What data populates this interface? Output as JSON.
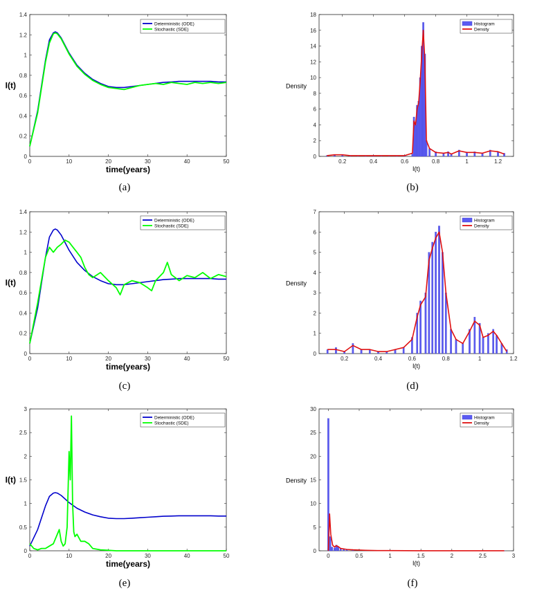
{
  "chart_data": [
    {
      "panel": "a",
      "type": "line",
      "caption": "(a)",
      "xlabel": "time(years)",
      "ylabel": "I(t)",
      "xlim": [
        0,
        50
      ],
      "ylim": [
        0,
        1.4
      ],
      "xticks": [
        "0",
        "10",
        "20",
        "30",
        "40",
        "50"
      ],
      "yticks": [
        "0",
        "0.2",
        "0.4",
        "0.6",
        "0.8",
        "1",
        "1.2",
        "1.4"
      ],
      "legend": "top-right",
      "series": [
        {
          "name": "Deterministic (ODE)",
          "color": "#0000cc",
          "x": [
            0,
            2,
            4,
            5,
            6,
            6.5,
            7,
            8,
            10,
            12,
            14,
            16,
            18,
            20,
            22,
            24,
            26,
            28,
            30,
            32,
            34,
            36,
            38,
            40,
            42,
            44,
            46,
            48,
            50
          ],
          "y": [
            0.1,
            0.45,
            0.95,
            1.15,
            1.22,
            1.23,
            1.22,
            1.17,
            1.02,
            0.9,
            0.82,
            0.76,
            0.72,
            0.69,
            0.68,
            0.68,
            0.69,
            0.7,
            0.71,
            0.72,
            0.73,
            0.735,
            0.74,
            0.74,
            0.74,
            0.74,
            0.74,
            0.735,
            0.735
          ]
        },
        {
          "name": "Stochastic (SDE)",
          "color": "#00ff00",
          "x": [
            0,
            2,
            4,
            5,
            6,
            6.5,
            7,
            8,
            10,
            12,
            14,
            16,
            18,
            20,
            22,
            24,
            26,
            28,
            30,
            32,
            34,
            36,
            38,
            40,
            42,
            44,
            46,
            48,
            50
          ],
          "y": [
            0.1,
            0.43,
            0.93,
            1.12,
            1.21,
            1.22,
            1.21,
            1.16,
            1.01,
            0.89,
            0.81,
            0.75,
            0.71,
            0.68,
            0.67,
            0.66,
            0.68,
            0.7,
            0.71,
            0.72,
            0.71,
            0.73,
            0.72,
            0.71,
            0.73,
            0.72,
            0.73,
            0.72,
            0.73
          ]
        }
      ]
    },
    {
      "panel": "b",
      "type": "bar",
      "caption": "(b)",
      "xlabel": "I(t)",
      "ylabel": "Density",
      "xlim": [
        0.05,
        1.3
      ],
      "ylim": [
        0,
        18
      ],
      "xticks": [
        "0.2",
        "0.4",
        "0.6",
        "0.8",
        "1",
        "1.2"
      ],
      "yticks": [
        "0",
        "2",
        "4",
        "6",
        "8",
        "10",
        "12",
        "14",
        "16",
        "18"
      ],
      "legend": "top-right",
      "series": [
        {
          "name": "Histogram",
          "color": "#5b5bf2",
          "x": [
            0.1,
            0.15,
            0.2,
            0.25,
            0.3,
            0.35,
            0.4,
            0.45,
            0.5,
            0.55,
            0.6,
            0.65,
            0.66,
            0.67,
            0.68,
            0.69,
            0.7,
            0.71,
            0.72,
            0.73,
            0.74,
            0.76,
            0.8,
            0.85,
            0.88,
            0.9,
            0.95,
            1.0,
            1.05,
            1.1,
            1.15,
            1.2,
            1.24
          ],
          "y": [
            0.1,
            0.2,
            0.2,
            0.1,
            0.1,
            0.1,
            0.1,
            0.1,
            0.1,
            0.1,
            0.1,
            0.3,
            5,
            4,
            6.5,
            7,
            10,
            14,
            17,
            13,
            2,
            1,
            0.6,
            0.4,
            0.6,
            0.3,
            0.8,
            0.5,
            0.6,
            0.4,
            0.8,
            0.6,
            0.4
          ]
        },
        {
          "name": "Density",
          "color": "#e01010",
          "x": [
            0.1,
            0.15,
            0.2,
            0.25,
            0.3,
            0.35,
            0.4,
            0.45,
            0.5,
            0.55,
            0.6,
            0.65,
            0.66,
            0.67,
            0.68,
            0.69,
            0.7,
            0.71,
            0.72,
            0.73,
            0.74,
            0.76,
            0.8,
            0.85,
            0.88,
            0.9,
            0.95,
            1.0,
            1.05,
            1.1,
            1.15,
            1.2,
            1.24
          ],
          "y": [
            0.1,
            0.2,
            0.2,
            0.1,
            0.1,
            0.1,
            0.1,
            0.1,
            0.1,
            0.1,
            0.1,
            0.4,
            4.5,
            4,
            6,
            6.8,
            9.5,
            13,
            16,
            12,
            2,
            1,
            0.5,
            0.4,
            0.5,
            0.3,
            0.7,
            0.5,
            0.5,
            0.4,
            0.7,
            0.6,
            0.3
          ]
        }
      ]
    },
    {
      "panel": "c",
      "type": "line",
      "caption": "(c)",
      "xlabel": "time(years)",
      "ylabel": "I(t)",
      "xlim": [
        0,
        50
      ],
      "ylim": [
        0,
        1.4
      ],
      "xticks": [
        "0",
        "10",
        "20",
        "30",
        "40",
        "50"
      ],
      "yticks": [
        "0",
        "0.2",
        "0.4",
        "0.6",
        "0.8",
        "1",
        "1.2",
        "1.4"
      ],
      "legend": "top-right",
      "series": [
        {
          "name": "Deterministic (ODE)",
          "color": "#0000cc",
          "x": [
            0,
            2,
            4,
            5,
            6,
            6.5,
            7,
            8,
            10,
            12,
            14,
            16,
            18,
            20,
            22,
            24,
            26,
            28,
            30,
            32,
            34,
            36,
            38,
            40,
            42,
            44,
            46,
            48,
            50
          ],
          "y": [
            0.1,
            0.45,
            0.95,
            1.15,
            1.22,
            1.23,
            1.22,
            1.17,
            1.02,
            0.9,
            0.82,
            0.76,
            0.72,
            0.69,
            0.68,
            0.68,
            0.69,
            0.7,
            0.71,
            0.72,
            0.73,
            0.735,
            0.74,
            0.74,
            0.74,
            0.74,
            0.74,
            0.735,
            0.735
          ]
        },
        {
          "name": "Stochastic (SDE)",
          "color": "#00ff00",
          "x": [
            0,
            2,
            4,
            5,
            6,
            7,
            8,
            9,
            10,
            11,
            12,
            13,
            14,
            15,
            16,
            18,
            20,
            22,
            23,
            24,
            26,
            28,
            30,
            31,
            32,
            34,
            35,
            36,
            38,
            40,
            42,
            44,
            46,
            48,
            50
          ],
          "y": [
            0.1,
            0.5,
            0.95,
            1.05,
            1.0,
            1.05,
            1.08,
            1.12,
            1.1,
            1.05,
            1.0,
            0.95,
            0.85,
            0.78,
            0.75,
            0.8,
            0.72,
            0.65,
            0.58,
            0.68,
            0.72,
            0.7,
            0.65,
            0.62,
            0.72,
            0.8,
            0.9,
            0.78,
            0.72,
            0.77,
            0.75,
            0.8,
            0.74,
            0.78,
            0.76
          ]
        }
      ]
    },
    {
      "panel": "d",
      "type": "bar",
      "caption": "(d)",
      "xlabel": "I(t)",
      "ylabel": "Density",
      "xlim": [
        0.05,
        1.2
      ],
      "ylim": [
        0,
        7
      ],
      "xticks": [
        "0.2",
        "0.4",
        "0.6",
        "0.8",
        "1",
        "1.2"
      ],
      "yticks": [
        "0",
        "1",
        "2",
        "3",
        "4",
        "5",
        "6",
        "7"
      ],
      "legend": "top-right",
      "series": [
        {
          "name": "Histogram",
          "color": "#5b5bf2",
          "x": [
            0.1,
            0.15,
            0.2,
            0.25,
            0.3,
            0.35,
            0.4,
            0.45,
            0.5,
            0.55,
            0.6,
            0.63,
            0.65,
            0.68,
            0.7,
            0.72,
            0.74,
            0.76,
            0.78,
            0.8,
            0.83,
            0.86,
            0.9,
            0.94,
            0.97,
            1.0,
            1.02,
            1.05,
            1.08,
            1.1,
            1.13,
            1.16
          ],
          "y": [
            0.2,
            0.3,
            0.1,
            0.5,
            0.2,
            0.2,
            0.1,
            0.1,
            0.2,
            0.3,
            0.8,
            2.0,
            2.6,
            3.0,
            5.0,
            5.5,
            6.0,
            6.3,
            5.0,
            3.0,
            1.2,
            0.7,
            0.5,
            1.2,
            1.8,
            1.5,
            0.8,
            1.0,
            1.2,
            0.9,
            0.5,
            0.2
          ]
        },
        {
          "name": "Density",
          "color": "#e01010",
          "x": [
            0.1,
            0.15,
            0.2,
            0.25,
            0.3,
            0.35,
            0.4,
            0.45,
            0.5,
            0.55,
            0.6,
            0.63,
            0.65,
            0.68,
            0.7,
            0.72,
            0.74,
            0.76,
            0.78,
            0.8,
            0.83,
            0.86,
            0.9,
            0.94,
            0.97,
            1.0,
            1.02,
            1.05,
            1.08,
            1.1,
            1.13,
            1.16
          ],
          "y": [
            0.2,
            0.2,
            0.1,
            0.4,
            0.2,
            0.2,
            0.1,
            0.1,
            0.2,
            0.3,
            0.7,
            1.8,
            2.4,
            2.8,
            4.6,
            5.2,
            5.7,
            6.0,
            5.0,
            3.0,
            1.2,
            0.7,
            0.5,
            1.1,
            1.6,
            1.4,
            0.8,
            0.9,
            1.1,
            0.9,
            0.5,
            0.1
          ]
        }
      ]
    },
    {
      "panel": "e",
      "type": "line",
      "caption": "(e)",
      "xlabel": "time(years)",
      "ylabel": "I(t)",
      "xlim": [
        0,
        50
      ],
      "ylim": [
        0,
        3
      ],
      "xticks": [
        "0",
        "10",
        "20",
        "30",
        "40",
        "50"
      ],
      "yticks": [
        "0",
        "0.5",
        "1",
        "1.5",
        "2",
        "2.5",
        "3"
      ],
      "legend": "top-right",
      "series": [
        {
          "name": "Deterministic (ODE)",
          "color": "#0000cc",
          "x": [
            0,
            2,
            4,
            5,
            6,
            6.5,
            7,
            8,
            10,
            12,
            14,
            16,
            18,
            20,
            22,
            24,
            26,
            28,
            30,
            32,
            34,
            36,
            38,
            40,
            42,
            44,
            46,
            48,
            50
          ],
          "y": [
            0.1,
            0.45,
            0.95,
            1.15,
            1.22,
            1.23,
            1.22,
            1.17,
            1.02,
            0.9,
            0.82,
            0.76,
            0.72,
            0.69,
            0.68,
            0.68,
            0.69,
            0.7,
            0.71,
            0.72,
            0.73,
            0.735,
            0.74,
            0.74,
            0.74,
            0.74,
            0.74,
            0.735,
            0.735
          ]
        },
        {
          "name": "Stochastic (SDE)",
          "color": "#00ff00",
          "x": [
            0,
            1,
            2,
            3,
            4,
            5,
            6,
            7,
            7.5,
            8,
            8.5,
            9,
            9.5,
            10,
            10.3,
            10.6,
            10.9,
            11.2,
            11.5,
            12,
            13,
            14,
            15,
            16,
            18,
            20,
            22,
            25,
            30,
            35,
            40,
            45,
            50
          ],
          "y": [
            0.15,
            0.05,
            0.02,
            0.05,
            0.05,
            0.1,
            0.15,
            0.35,
            0.45,
            0.2,
            0.1,
            0.15,
            0.5,
            2.1,
            1.5,
            2.85,
            1.0,
            0.4,
            0.3,
            0.35,
            0.2,
            0.2,
            0.15,
            0.05,
            0.02,
            0.01,
            0,
            0,
            0,
            0,
            0,
            0,
            0
          ]
        }
      ]
    },
    {
      "panel": "f",
      "type": "bar",
      "caption": "(f)",
      "xlabel": "I(t)",
      "ylabel": "Density",
      "xlim": [
        -0.15,
        3.0
      ],
      "ylim": [
        0,
        30
      ],
      "xticks": [
        "0",
        "0.5",
        "1",
        "1.5",
        "2",
        "2.5",
        "3"
      ],
      "yticks": [
        "0",
        "5",
        "10",
        "15",
        "20",
        "25",
        "30"
      ],
      "legend": "top-right",
      "series": [
        {
          "name": "Histogram",
          "color": "#5b5bf2",
          "x": [
            0.0,
            0.03,
            0.06,
            0.1,
            0.13,
            0.16,
            0.2,
            0.25,
            0.3,
            0.4,
            0.6,
            0.8,
            1.0,
            1.5,
            2.0,
            2.5,
            2.85
          ],
          "y": [
            28,
            3,
            0.8,
            0.6,
            1.2,
            0.9,
            0.5,
            0.4,
            0.3,
            0.2,
            0.1,
            0.05,
            0.05,
            0.02,
            0.02,
            0.02,
            0.02
          ]
        },
        {
          "name": "Density",
          "color": "#e01010",
          "x": [
            0.0,
            0.02,
            0.04,
            0.07,
            0.1,
            0.13,
            0.16,
            0.2,
            0.25,
            0.3,
            0.4,
            0.6,
            0.8,
            1.0,
            1.5,
            2.0,
            2.5,
            2.85
          ],
          "y": [
            0,
            7.8,
            3.5,
            1.2,
            0.8,
            1.1,
            0.9,
            0.5,
            0.4,
            0.3,
            0.2,
            0.1,
            0.05,
            0.05,
            0.02,
            0.02,
            0.02,
            0.02
          ]
        }
      ]
    }
  ]
}
